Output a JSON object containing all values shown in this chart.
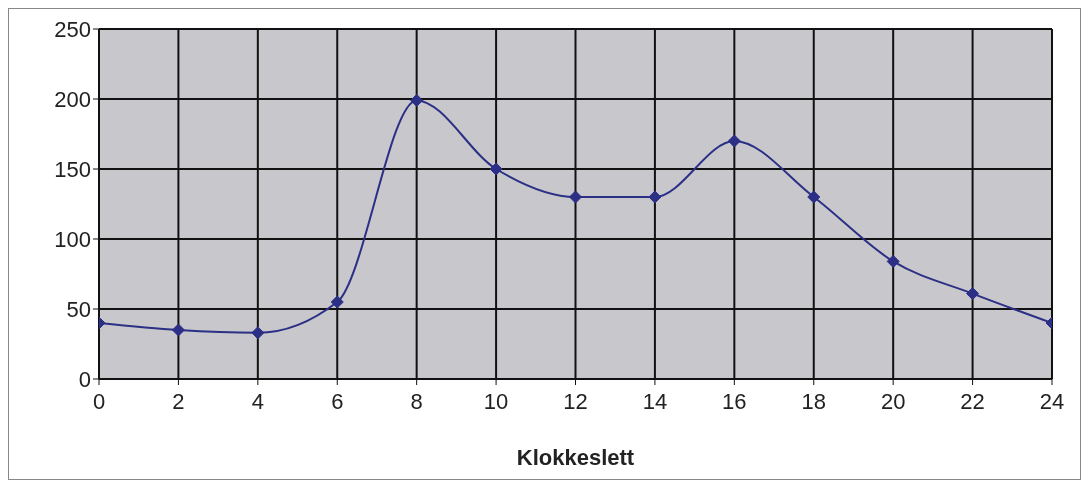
{
  "chart_data": {
    "type": "line",
    "xlabel": "Klokkeslett",
    "x": [
      0,
      2,
      4,
      6,
      8,
      10,
      12,
      14,
      16,
      18,
      20,
      22,
      24
    ],
    "series": [
      {
        "color": "#2b2f85",
        "values": [
          40,
          35,
          33,
          55,
          199,
          150,
          130,
          130,
          170,
          130,
          84,
          61,
          40
        ]
      }
    ],
    "xlim": [
      0,
      24
    ],
    "xticks": [
      0,
      2,
      4,
      6,
      8,
      10,
      12,
      14,
      16,
      18,
      20,
      22,
      24
    ],
    "ylim": [
      0,
      250
    ],
    "yticks": [
      0,
      50,
      100,
      150,
      200,
      250
    ],
    "grid": true,
    "legend": false,
    "marker": "diamond",
    "line_style": "solid"
  }
}
